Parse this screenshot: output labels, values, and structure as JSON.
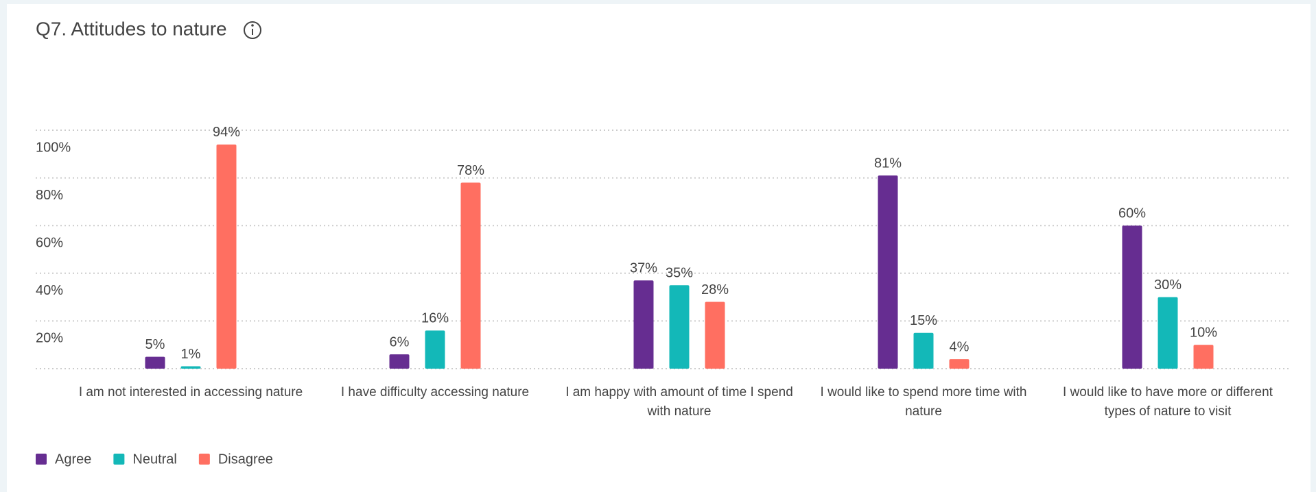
{
  "chart_data": {
    "type": "bar",
    "title": "Q7. Attitudes to nature",
    "categories": [
      "I am not interested in accessing nature",
      "I have difficulty accessing nature",
      "I am happy with amount of time I spend with nature",
      "I would like to spend more time with nature",
      "I would like to have more or different types of nature to visit"
    ],
    "series": [
      {
        "name": "Agree",
        "color": "#662d91",
        "values": [
          5,
          6,
          37,
          81,
          60
        ],
        "value_labels": [
          "5%",
          "6%",
          "37%",
          "81%",
          "60%"
        ]
      },
      {
        "name": "Neutral",
        "color": "#13b8b8",
        "values": [
          1,
          16,
          35,
          15,
          30
        ],
        "value_labels": [
          "1%",
          "16%",
          "35%",
          "15%",
          "30%"
        ]
      },
      {
        "name": "Disagree",
        "color": "#ff6f61",
        "values": [
          94,
          78,
          28,
          4,
          10
        ],
        "value_labels": [
          "94%",
          "78%",
          "28%",
          "4%",
          "10%"
        ]
      }
    ],
    "ylim": [
      0,
      100
    ],
    "yticks": [
      {
        "value": 20,
        "label": "20%"
      },
      {
        "value": 40,
        "label": "40%"
      },
      {
        "value": 60,
        "label": "60%"
      },
      {
        "value": 80,
        "label": "80%"
      },
      {
        "value": 100,
        "label": "100%"
      }
    ],
    "grid": true,
    "legend": "bottom-left"
  }
}
